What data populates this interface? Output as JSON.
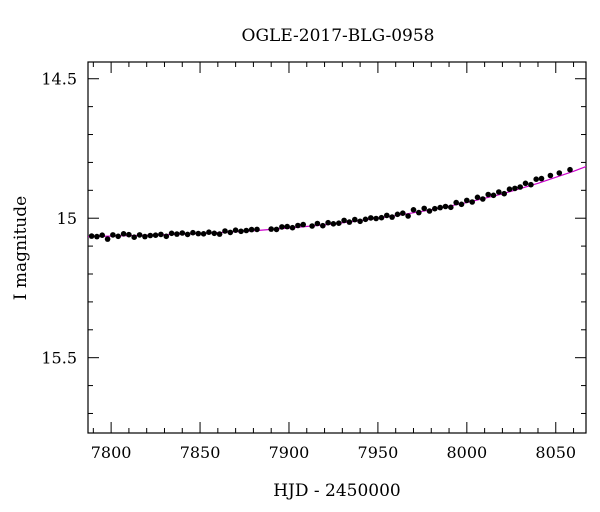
{
  "chart_data": {
    "type": "scatter",
    "title": "OGLE-2017-BLG-0958",
    "xlabel": "HJD - 2450000",
    "ylabel": "I magnitude",
    "xlim": [
      7787,
      8067
    ],
    "ylim": [
      15.77,
      14.44
    ],
    "y_inverted": true,
    "x_ticks": [
      7800,
      7850,
      7900,
      7950,
      8000,
      8050
    ],
    "y_ticks": [
      14.5,
      15,
      15.5
    ],
    "y_tick_labels": [
      "14.5",
      "15",
      "15.5"
    ],
    "grid": false,
    "colors": {
      "points": "#000000",
      "model": "#cc00cc",
      "axes": "#000000"
    },
    "series": [
      {
        "kind": "points",
        "x": [
          7789,
          7792,
          7795,
          7798,
          7801,
          7804,
          7807,
          7810,
          7813,
          7816,
          7819,
          7822,
          7825,
          7828,
          7831,
          7834,
          7837,
          7840,
          7843,
          7846,
          7849,
          7852,
          7855,
          7858,
          7861,
          7864,
          7867,
          7870,
          7873,
          7876,
          7879,
          7882,
          7890,
          7893,
          7896,
          7899,
          7902,
          7905,
          7908,
          7913,
          7916,
          7919,
          7922,
          7925,
          7928,
          7931,
          7934,
          7937,
          7940,
          7943,
          7946,
          7949,
          7952,
          7955,
          7958,
          7961,
          7964,
          7967,
          7970,
          7973,
          7976,
          7979,
          7982,
          7985,
          7988,
          7991,
          7994,
          7997,
          8000,
          8003,
          8006,
          8009,
          8012,
          8015,
          8018,
          8021,
          8024,
          8027,
          8030,
          8033,
          8036,
          8039,
          8042,
          8047,
          8052,
          8058
        ],
        "y": [
          15.064,
          15.066,
          15.061,
          15.075,
          15.06,
          15.065,
          15.056,
          15.059,
          15.068,
          15.06,
          15.066,
          15.062,
          15.061,
          15.058,
          15.065,
          15.054,
          15.057,
          15.053,
          15.058,
          15.052,
          15.055,
          15.056,
          15.05,
          15.054,
          15.057,
          15.046,
          15.051,
          15.043,
          15.047,
          15.044,
          15.041,
          15.04,
          15.039,
          15.04,
          15.031,
          15.03,
          15.034,
          15.026,
          15.023,
          15.028,
          15.019,
          15.027,
          15.016,
          15.02,
          15.018,
          15.008,
          15.014,
          15.005,
          15.011,
          15.004,
          14.999,
          15.001,
          14.998,
          14.99,
          14.996,
          14.986,
          14.982,
          14.992,
          14.97,
          14.98,
          14.965,
          14.974,
          14.966,
          14.962,
          14.958,
          14.961,
          14.944,
          14.95,
          14.936,
          14.942,
          14.925,
          14.931,
          14.915,
          14.918,
          14.906,
          14.912,
          14.896,
          14.893,
          14.888,
          14.875,
          14.88,
          14.86,
          14.858,
          14.847,
          14.838,
          14.826
        ]
      },
      {
        "kind": "model",
        "x": [
          7787,
          7800,
          7820,
          7840,
          7860,
          7880,
          7900,
          7920,
          7940,
          7960,
          7980,
          8000,
          8020,
          8040,
          8060,
          8067
        ],
        "y": [
          15.066,
          15.064,
          15.061,
          15.057,
          15.052,
          15.045,
          15.035,
          15.024,
          15.009,
          14.991,
          14.97,
          14.944,
          14.913,
          14.875,
          14.832,
          14.815
        ]
      }
    ]
  }
}
